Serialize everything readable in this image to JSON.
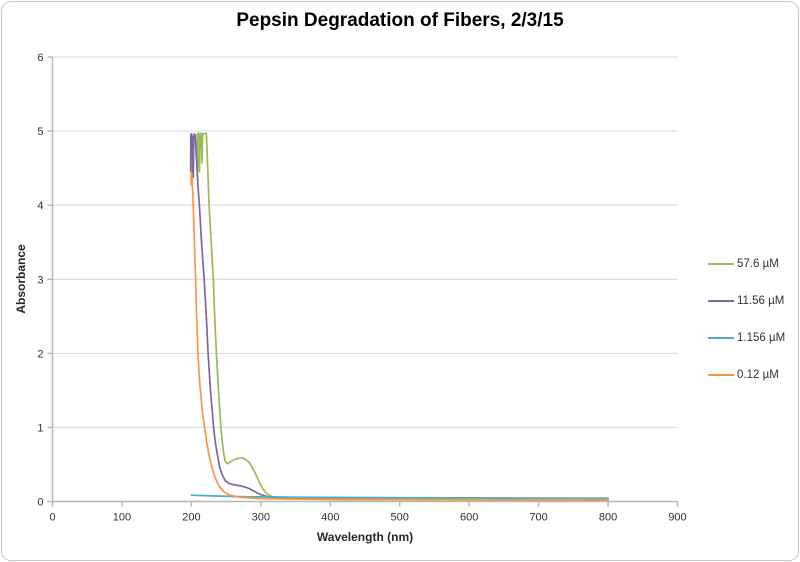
{
  "chart_data": {
    "type": "line",
    "title": "Pepsin Degradation of Fibers, 2/3/15",
    "xlabel": "Wavelength (nm)",
    "ylabel": "Absorbance",
    "xlim": [
      0,
      900
    ],
    "ylim": [
      0,
      6
    ],
    "x_ticks": [
      0,
      100,
      200,
      300,
      400,
      500,
      600,
      700,
      800,
      900
    ],
    "y_ticks": [
      0,
      1,
      2,
      3,
      4,
      5,
      6
    ],
    "grid": "horizontal-major",
    "legend_position": "right-middle",
    "colors": {
      "axis": "#b7b7b7",
      "gridline": "#d6d6d6",
      "tick_text": "#303030",
      "title_text": "#000000"
    },
    "series": [
      {
        "name": "57.6 µM",
        "color": "#9BBB59",
        "points": [
          [
            208.5,
            4.38
          ],
          [
            208.8,
            4.95
          ],
          [
            209.2,
            4.97
          ],
          [
            210.6,
            4.97
          ],
          [
            211.0,
            4.55
          ],
          [
            211.5,
            4.45
          ],
          [
            212.0,
            4.55
          ],
          [
            212.4,
            4.95
          ],
          [
            214.2,
            4.97
          ],
          [
            214.8,
            4.7
          ],
          [
            215.3,
            4.57
          ],
          [
            215.8,
            4.85
          ],
          [
            216.3,
            4.96
          ],
          [
            221.5,
            4.97
          ],
          [
            222.3,
            4.8
          ],
          [
            223.5,
            4.5
          ],
          [
            225.5,
            4.0
          ],
          [
            228.5,
            3.5
          ],
          [
            231.5,
            3.0
          ],
          [
            233.5,
            2.5
          ],
          [
            236.0,
            2.0
          ],
          [
            239.0,
            1.5
          ],
          [
            242.5,
            1.0
          ],
          [
            244.5,
            0.8
          ],
          [
            246.5,
            0.65
          ],
          [
            248.5,
            0.55
          ],
          [
            250.5,
            0.52
          ],
          [
            252.0,
            0.51
          ],
          [
            255.0,
            0.53
          ],
          [
            259.0,
            0.55
          ],
          [
            263.0,
            0.57
          ],
          [
            267.0,
            0.58
          ],
          [
            271.0,
            0.59
          ],
          [
            275.0,
            0.58
          ],
          [
            279.0,
            0.56
          ],
          [
            283.0,
            0.53
          ],
          [
            287.0,
            0.47
          ],
          [
            291.0,
            0.4
          ],
          [
            295.0,
            0.32
          ],
          [
            299.0,
            0.24
          ],
          [
            303.0,
            0.17
          ],
          [
            307.0,
            0.12
          ],
          [
            311.0,
            0.09
          ],
          [
            316.0,
            0.07
          ],
          [
            321.0,
            0.055
          ],
          [
            328.0,
            0.046
          ],
          [
            338.0,
            0.039
          ],
          [
            355.0,
            0.033
          ],
          [
            385.0,
            0.029
          ],
          [
            430.0,
            0.026
          ],
          [
            500.0,
            0.024
          ],
          [
            600.0,
            0.022
          ],
          [
            700.0,
            0.021
          ],
          [
            800.0,
            0.02
          ]
        ]
      },
      {
        "name": "11.56 µM",
        "color": "#8064A2",
        "points": [
          [
            199.0,
            4.45
          ],
          [
            199.2,
            4.93
          ],
          [
            199.6,
            4.96
          ],
          [
            200.4,
            4.96
          ],
          [
            200.8,
            4.75
          ],
          [
            201.1,
            4.93
          ],
          [
            201.5,
            4.7
          ],
          [
            201.9,
            4.42
          ],
          [
            202.3,
            4.37
          ],
          [
            202.8,
            4.38
          ],
          [
            203.2,
            4.65
          ],
          [
            203.6,
            4.93
          ],
          [
            204.0,
            4.96
          ],
          [
            205.5,
            4.95
          ],
          [
            206.2,
            4.88
          ],
          [
            206.8,
            4.7
          ],
          [
            207.5,
            4.6
          ],
          [
            209.5,
            4.25
          ],
          [
            211.5,
            4.0
          ],
          [
            214.5,
            3.5
          ],
          [
            218.5,
            3.0
          ],
          [
            221.5,
            2.5
          ],
          [
            224.0,
            2.0
          ],
          [
            227.5,
            1.5
          ],
          [
            232.0,
            1.0
          ],
          [
            234.5,
            0.8
          ],
          [
            238.0,
            0.6
          ],
          [
            241.0,
            0.45
          ],
          [
            245.0,
            0.35
          ],
          [
            249.0,
            0.28
          ],
          [
            254.0,
            0.245
          ],
          [
            259.0,
            0.23
          ],
          [
            265.0,
            0.22
          ],
          [
            271.0,
            0.21
          ],
          [
            277.0,
            0.195
          ],
          [
            283.0,
            0.175
          ],
          [
            289.0,
            0.145
          ],
          [
            295.0,
            0.115
          ],
          [
            301.0,
            0.09
          ],
          [
            308.0,
            0.07
          ],
          [
            315.0,
            0.057
          ],
          [
            324.0,
            0.048
          ],
          [
            336.0,
            0.042
          ],
          [
            360.0,
            0.038
          ],
          [
            400.0,
            0.035
          ],
          [
            480.0,
            0.032
          ],
          [
            570.0,
            0.03
          ],
          [
            670.0,
            0.029
          ],
          [
            800.0,
            0.028
          ]
        ]
      },
      {
        "name": "1.156 µM",
        "color": "#4BACC6",
        "points": [
          [
            200.0,
            0.085
          ],
          [
            230.0,
            0.075
          ],
          [
            260.0,
            0.068
          ],
          [
            300.0,
            0.062
          ],
          [
            350.0,
            0.058
          ],
          [
            400.0,
            0.055
          ],
          [
            500.0,
            0.051
          ],
          [
            600.0,
            0.048
          ],
          [
            700.0,
            0.046
          ],
          [
            800.0,
            0.045
          ]
        ]
      },
      {
        "name": "0.12 µM",
        "color": "#F79646",
        "points": [
          [
            199.5,
            4.28
          ],
          [
            200.0,
            4.45
          ],
          [
            200.6,
            4.42
          ],
          [
            201.5,
            4.25
          ],
          [
            202.5,
            4.05
          ],
          [
            204.0,
            3.6
          ],
          [
            206.0,
            3.0
          ],
          [
            207.5,
            2.5
          ],
          [
            209.5,
            2.0
          ],
          [
            212.0,
            1.6
          ],
          [
            216.0,
            1.2
          ],
          [
            219.0,
            1.0
          ],
          [
            222.0,
            0.8
          ],
          [
            226.0,
            0.6
          ],
          [
            230.0,
            0.45
          ],
          [
            234.0,
            0.33
          ],
          [
            238.0,
            0.24
          ],
          [
            242.0,
            0.18
          ],
          [
            247.0,
            0.13
          ],
          [
            252.0,
            0.1
          ],
          [
            258.0,
            0.08
          ],
          [
            265.0,
            0.065
          ],
          [
            273.0,
            0.055
          ],
          [
            283.0,
            0.048
          ],
          [
            295.0,
            0.042
          ],
          [
            310.0,
            0.038
          ],
          [
            340.0,
            0.034
          ],
          [
            400.0,
            0.031
          ],
          [
            500.0,
            0.029
          ],
          [
            600.0,
            0.028
          ],
          [
            700.0,
            0.027
          ],
          [
            800.0,
            0.026
          ]
        ]
      }
    ]
  }
}
